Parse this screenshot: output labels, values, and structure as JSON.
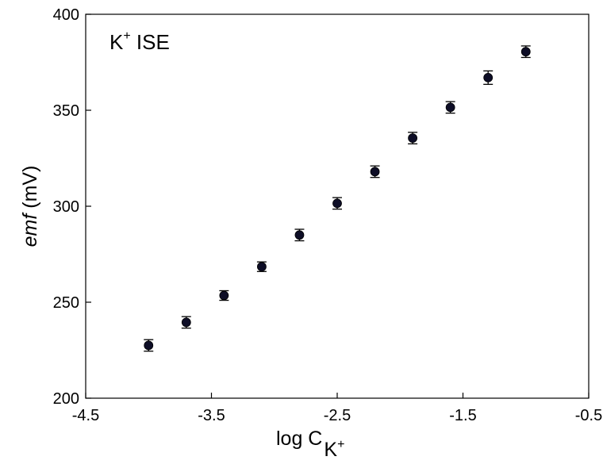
{
  "chart_data": {
    "type": "scatter",
    "title": "",
    "annotation": {
      "text": "K",
      "sup": "+",
      "rest": " ISE"
    },
    "xlabel": {
      "text": "log C",
      "sub": "K",
      "sub_sup": "+"
    },
    "ylabel": {
      "italic": "emf",
      "rest": " (mV)"
    },
    "xlim": [
      -4.5,
      -0.5
    ],
    "ylim": [
      200,
      400
    ],
    "x_ticks": [
      -4.5,
      -3.5,
      -2.5,
      -1.5,
      -0.5
    ],
    "x_tick_labels": [
      "-4.5",
      "-3.5",
      "-2.5",
      "-1.5",
      "-0.5"
    ],
    "y_ticks": [
      200,
      250,
      300,
      350,
      400
    ],
    "y_tick_labels": [
      "200",
      "250",
      "300",
      "350",
      "400"
    ],
    "grid": false,
    "marker_color": "#0d0d26",
    "points": [
      {
        "x": -4.0,
        "y": 227.5,
        "err": 3.0
      },
      {
        "x": -3.7,
        "y": 239.5,
        "err": 3.0
      },
      {
        "x": -3.4,
        "y": 253.5,
        "err": 2.5
      },
      {
        "x": -3.1,
        "y": 268.5,
        "err": 2.5
      },
      {
        "x": -2.8,
        "y": 285.0,
        "err": 3.0
      },
      {
        "x": -2.5,
        "y": 301.5,
        "err": 3.0
      },
      {
        "x": -2.2,
        "y": 318.0,
        "err": 3.0
      },
      {
        "x": -1.9,
        "y": 335.5,
        "err": 3.0
      },
      {
        "x": -1.6,
        "y": 351.5,
        "err": 3.0
      },
      {
        "x": -1.3,
        "y": 367.0,
        "err": 3.5
      },
      {
        "x": -1.0,
        "y": 380.5,
        "err": 3.0
      }
    ]
  }
}
